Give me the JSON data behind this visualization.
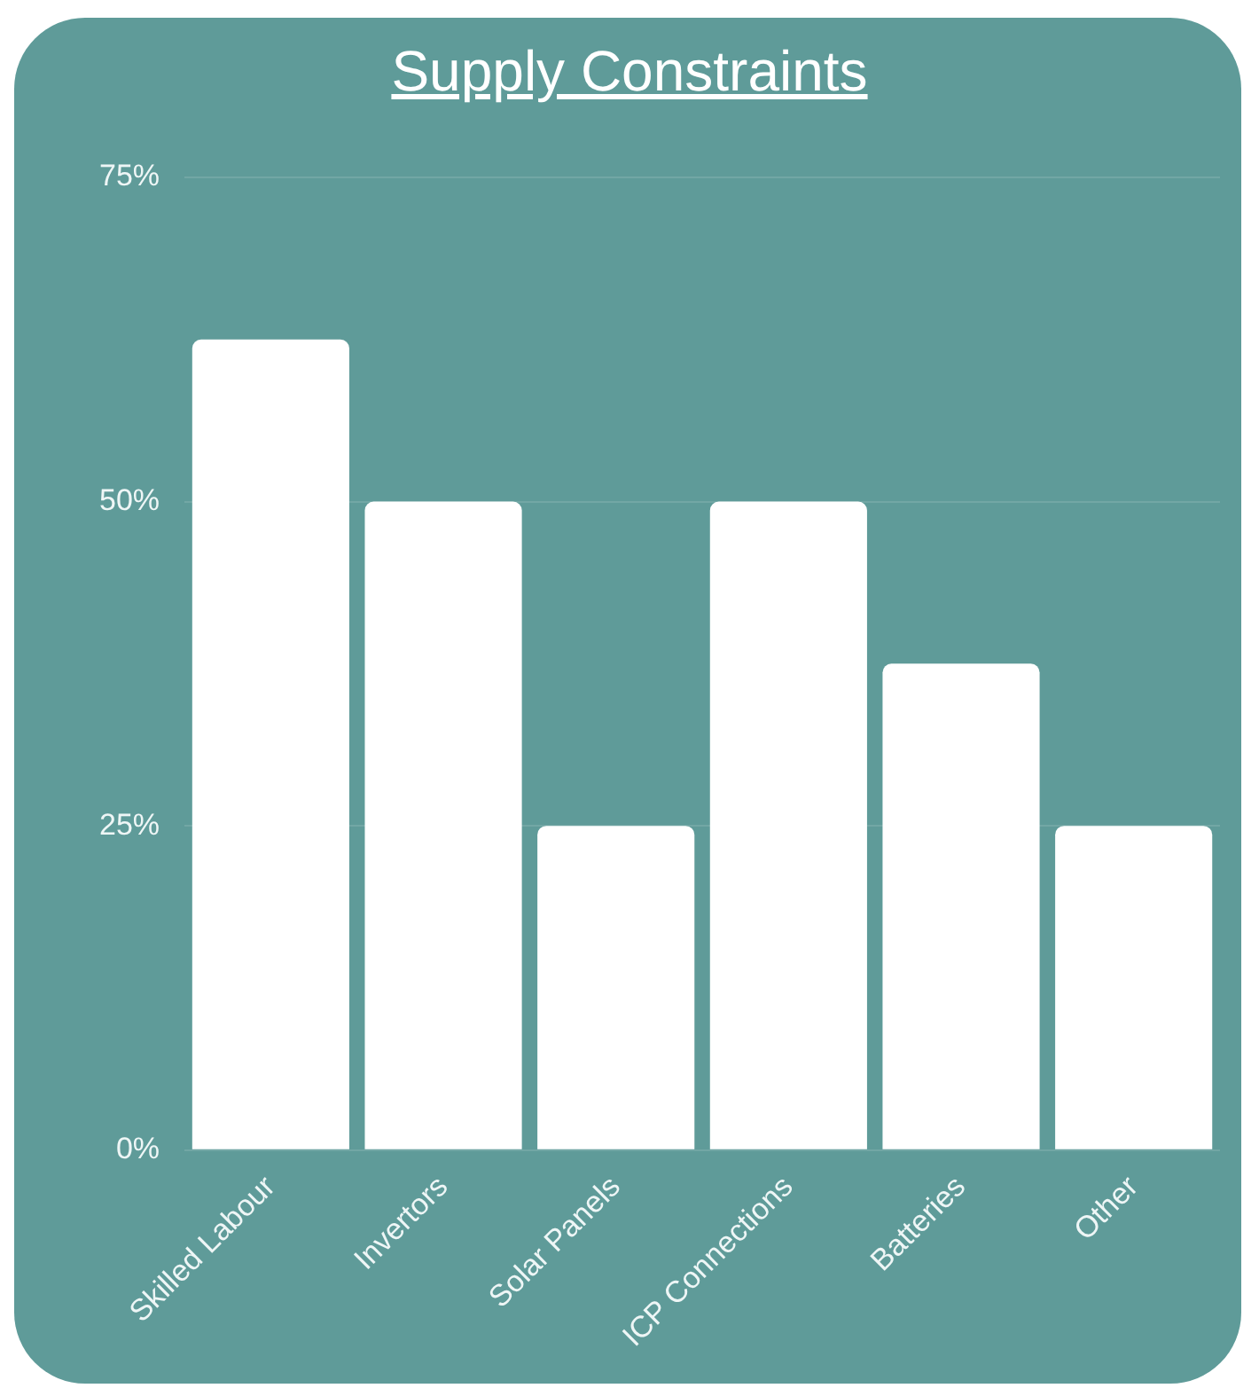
{
  "chart_data": {
    "type": "bar",
    "title": "Supply Constraints",
    "categories": [
      "Skilled Labour",
      "Invertors",
      "Solar Panels",
      "ICP Connections",
      "Batteries",
      "Other"
    ],
    "values": [
      62.5,
      50,
      25,
      50,
      37.5,
      25
    ],
    "color": "#ffffff",
    "ylim": [
      0,
      75
    ],
    "yticks": [
      {
        "value": 0,
        "label": "0%"
      },
      {
        "value": 25,
        "label": "25%"
      },
      {
        "value": 50,
        "label": "50%"
      },
      {
        "value": 75,
        "label": "75%"
      }
    ],
    "grid": "y",
    "legend": false
  }
}
